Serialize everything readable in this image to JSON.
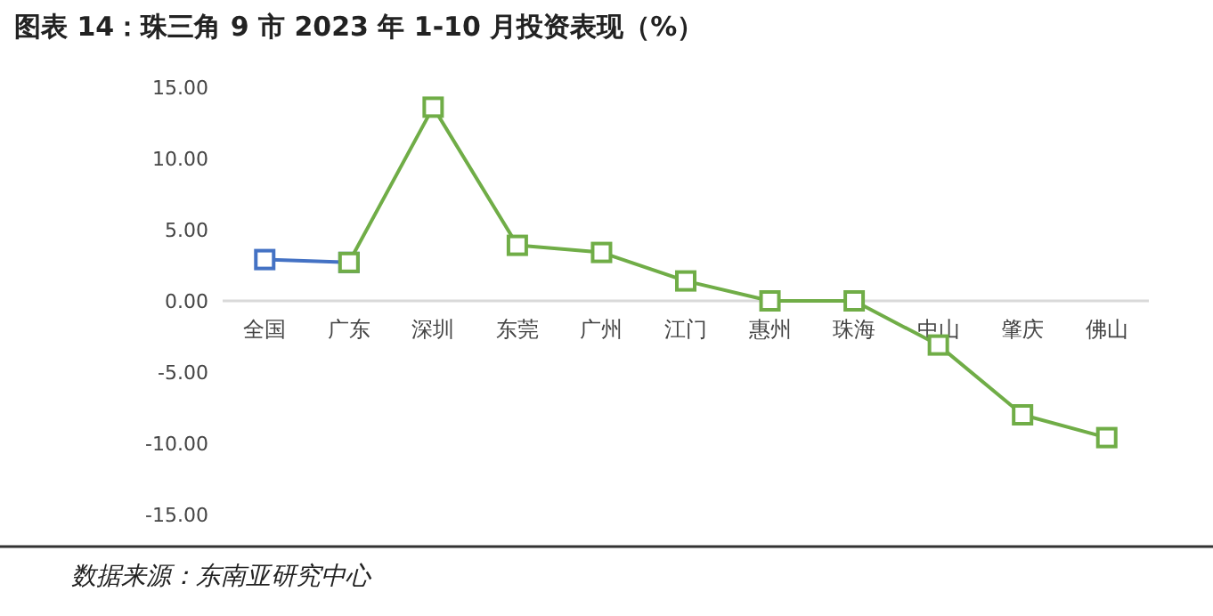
{
  "chart_data": {
    "type": "line",
    "title": "图表 14：珠三角 9 市 2023 年 1-10 月投资表现（%）",
    "annotations": [
      "数据来源：东南亚研究中心"
    ],
    "categories": [
      "全国",
      "广东",
      "深圳",
      "东莞",
      "广州",
      "江门",
      "惠州",
      "珠海",
      "中山",
      "肇庆",
      "佛山"
    ],
    "series": [
      {
        "color": "#4472c4",
        "values": [
          2.9,
          2.7,
          null,
          null,
          null,
          null,
          null,
          null,
          null,
          null,
          null
        ]
      },
      {
        "color": "#70ad47",
        "values": [
          null,
          2.7,
          13.6,
          3.9,
          3.4,
          1.4,
          0,
          0,
          -3.1,
          -8.0,
          -9.6
        ]
      }
    ],
    "ylim": [
      -15,
      15
    ],
    "yticks": [
      {
        "value": 15,
        "label": "15.00"
      },
      {
        "value": 10,
        "label": "10.00"
      },
      {
        "value": 5,
        "label": "5.00"
      },
      {
        "value": 0,
        "label": "0.00"
      },
      {
        "value": -5,
        "label": "-5.00"
      },
      {
        "value": -10,
        "label": "-10.00"
      },
      {
        "value": -15,
        "label": "-15.00"
      }
    ],
    "marker": "square",
    "grid": false
  }
}
